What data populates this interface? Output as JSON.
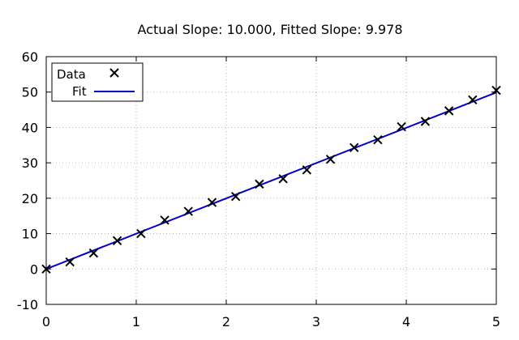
{
  "chart_data": {
    "type": "scatter",
    "title": "Actual Slope:  10.000, Fitted Slope:   9.978",
    "xlabel": "",
    "ylabel": "",
    "xlim": [
      0,
      5
    ],
    "ylim": [
      -10,
      60
    ],
    "x_ticks": [
      "0",
      "1",
      "2",
      "3",
      "4",
      "5"
    ],
    "y_ticks": [
      "-10",
      "0",
      "10",
      "20",
      "30",
      "40",
      "50",
      "60"
    ],
    "grid": true,
    "legend_position": "top-left",
    "series": [
      {
        "name": "Data",
        "kind": "points",
        "marker": "x",
        "color": "#000000",
        "x": [
          0,
          0.263,
          0.526,
          0.789,
          1.053,
          1.316,
          1.579,
          1.842,
          2.105,
          2.368,
          2.632,
          2.895,
          3.158,
          3.421,
          3.684,
          3.947,
          4.211,
          4.474,
          4.737,
          5.0
        ],
        "y": [
          0.0,
          2.0,
          4.5,
          8.0,
          10.0,
          13.8,
          16.3,
          18.8,
          20.5,
          24.0,
          25.5,
          28.0,
          31.0,
          34.3,
          36.5,
          40.2,
          41.7,
          44.7,
          47.8,
          50.5
        ]
      },
      {
        "name": "Fit",
        "kind": "line",
        "color": "#0000cc",
        "x": [
          0,
          5
        ],
        "y": [
          0.0,
          49.89
        ]
      }
    ]
  }
}
